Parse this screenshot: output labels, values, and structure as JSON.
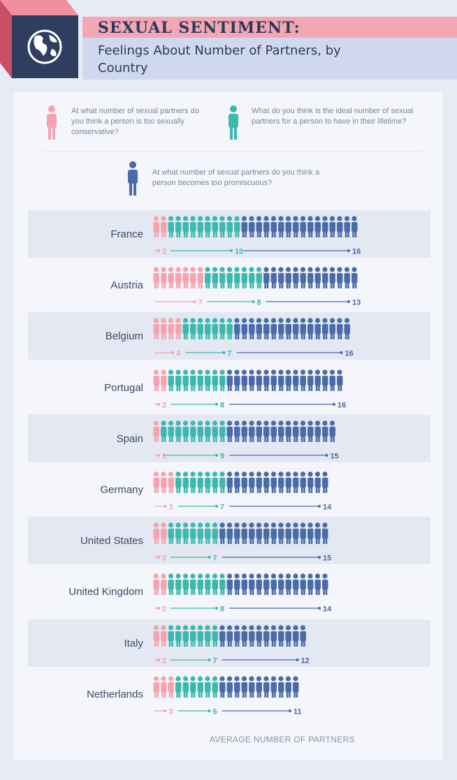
{
  "header": {
    "title": "SEXUAL SENTIMENT:",
    "subtitle": "Feelings About Number of Partners, by Country",
    "logo_icon": "globe-icon"
  },
  "legend": {
    "conservative": "At what number of sexual partners do you think a person is too sexually conservative?",
    "ideal": "What do you think is the ideal number of sexual partners for a person to have in their lifetime?",
    "promiscuous": "At what number of sexual partners do you think a person becomes too promiscuous?"
  },
  "colors": {
    "conservative": "#f4a3af",
    "ideal": "#3cb8ad",
    "promiscuous": "#4a6aa8",
    "band": "#e3e8f2",
    "panel": "#f4f6fb"
  },
  "chart_data": {
    "type": "pictograph",
    "xlabel": "AVERAGE NUMBER OF PARTNERS",
    "series": [
      {
        "key": "conservative",
        "values": [
          2,
          7,
          4,
          2,
          1,
          3,
          2,
          2,
          2,
          3
        ]
      },
      {
        "key": "ideal",
        "values": [
          10,
          8,
          7,
          8,
          9,
          7,
          7,
          8,
          7,
          6
        ]
      },
      {
        "key": "promiscuous",
        "values": [
          16,
          13,
          16,
          16,
          15,
          14,
          15,
          14,
          12,
          11
        ]
      }
    ],
    "categories": [
      "France",
      "Austria",
      "Belgium",
      "Portugal",
      "Spain",
      "Germany",
      "United States",
      "United Kingdom",
      "Italy",
      "Netherlands"
    ]
  }
}
